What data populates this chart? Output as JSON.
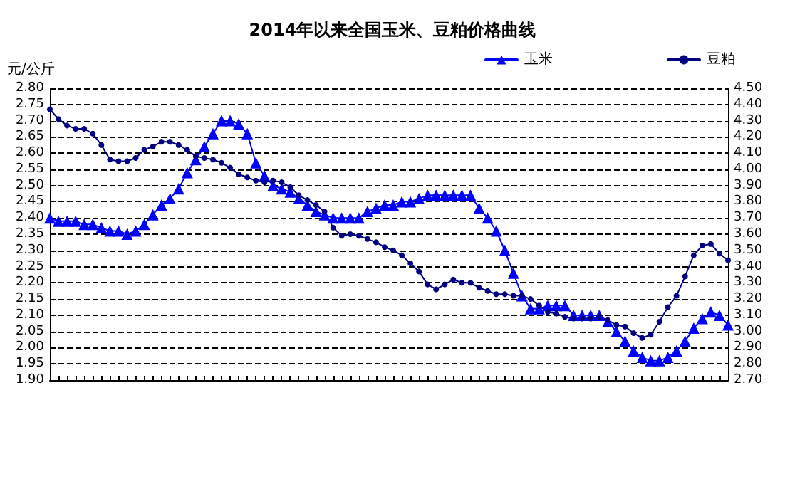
{
  "chart_data": {
    "type": "line",
    "title": "2014年以来全国玉米、豆粕价格曲线",
    "ylabel": "元/公斤",
    "categories": [
      null,
      null,
      null,
      null,
      null,
      null,
      null,
      null,
      null,
      null,
      null,
      null,
      null,
      null,
      null,
      null,
      null,
      null,
      null,
      null,
      null,
      null,
      null,
      null,
      null,
      null,
      null,
      null,
      null,
      null,
      null,
      null,
      null,
      null,
      null,
      null,
      null,
      null,
      null,
      null,
      null,
      null,
      null,
      null,
      null,
      null,
      null,
      null,
      null,
      null,
      null,
      null,
      null,
      null,
      null,
      null,
      null,
      null,
      null,
      null,
      null,
      null,
      null,
      null,
      null,
      null,
      null,
      null,
      null,
      null,
      null,
      null,
      null,
      null,
      null,
      null,
      null,
      null,
      null,
      null
    ],
    "series": [
      {
        "name": "玉米",
        "color": "#0000ff",
        "marker": "triangle",
        "values": [
          2.4,
          2.39,
          2.39,
          2.39,
          2.38,
          2.38,
          2.37,
          2.36,
          2.36,
          2.35,
          2.36,
          2.38,
          2.41,
          2.44,
          2.46,
          2.49,
          2.54,
          2.58,
          2.62,
          2.66,
          2.7,
          2.7,
          2.69,
          2.66,
          2.57,
          2.53,
          2.5,
          2.49,
          2.48,
          2.46,
          2.44,
          2.42,
          2.41,
          2.4,
          2.4,
          2.4,
          2.4,
          2.42,
          2.43,
          2.44,
          2.44,
          2.45,
          2.45,
          2.46,
          2.47,
          2.47,
          2.47,
          2.47,
          2.47,
          2.47,
          2.43,
          2.4,
          2.36,
          2.3,
          2.23,
          2.16,
          2.12,
          2.12,
          2.13,
          2.13,
          2.13,
          2.1,
          2.1,
          2.1,
          2.1,
          2.08,
          2.05,
          2.02,
          1.99,
          1.97,
          1.96,
          1.96,
          1.97,
          1.99,
          2.02,
          2.06,
          2.09,
          2.11,
          2.1,
          2.07
        ]
      },
      {
        "name": "豆粕",
        "color": "#000080",
        "marker": "circle",
        "axis": "y2",
        "values": [
          4.37,
          4.31,
          4.27,
          4.25,
          4.25,
          4.22,
          4.15,
          4.06,
          4.05,
          4.05,
          4.07,
          4.12,
          4.14,
          4.17,
          4.17,
          4.15,
          4.12,
          4.08,
          4.07,
          4.06,
          4.04,
          4.01,
          3.97,
          3.95,
          3.93,
          3.92,
          3.93,
          3.92,
          3.89,
          3.84,
          3.81,
          3.78,
          3.74,
          3.64,
          3.59,
          3.6,
          3.59,
          3.57,
          3.55,
          3.52,
          3.5,
          3.47,
          3.42,
          3.37,
          3.29,
          3.26,
          3.29,
          3.32,
          3.3,
          3.3,
          3.27,
          3.25,
          3.23,
          3.23,
          3.22,
          3.22,
          3.2,
          3.16,
          3.12,
          3.11,
          3.09,
          3.08,
          3.08,
          3.08,
          3.09,
          3.07,
          3.04,
          3.03,
          2.99,
          2.96,
          2.98,
          3.06,
          3.15,
          3.22,
          3.34,
          3.47,
          3.53,
          3.54,
          3.48,
          3.44
        ]
      }
    ],
    "ylim": [
      1.9,
      2.8
    ],
    "yticks": [
      {
        "value": 1.9,
        "label": "1.90"
      },
      {
        "value": 1.95,
        "label": "1.95"
      },
      {
        "value": 2.0,
        "label": "2.00"
      },
      {
        "value": 2.05,
        "label": "2.05"
      },
      {
        "value": 2.1,
        "label": "2.10"
      },
      {
        "value": 2.15,
        "label": "2.15"
      },
      {
        "value": 2.2,
        "label": "2.20"
      },
      {
        "value": 2.25,
        "label": "2.25"
      },
      {
        "value": 2.3,
        "label": "2.30"
      },
      {
        "value": 2.35,
        "label": "2.35"
      },
      {
        "value": 2.4,
        "label": "2.40"
      },
      {
        "value": 2.45,
        "label": "2.45"
      },
      {
        "value": 2.5,
        "label": "2.50"
      },
      {
        "value": 2.55,
        "label": "2.55"
      },
      {
        "value": 2.6,
        "label": "2.60"
      },
      {
        "value": 2.65,
        "label": "2.65"
      },
      {
        "value": 2.7,
        "label": "2.70"
      },
      {
        "value": 2.75,
        "label": "2.75"
      },
      {
        "value": 2.8,
        "label": "2.80"
      }
    ],
    "y2lim": [
      2.7,
      4.5
    ],
    "y2ticks": [
      {
        "value": 2.7,
        "label": "2.70"
      },
      {
        "value": 2.8,
        "label": "2.80"
      },
      {
        "value": 2.9,
        "label": "2.90"
      },
      {
        "value": 3.0,
        "label": "3.00"
      },
      {
        "value": 3.1,
        "label": "3.10"
      },
      {
        "value": 3.2,
        "label": "3.20"
      },
      {
        "value": 3.3,
        "label": "3.30"
      },
      {
        "value": 3.4,
        "label": "3.40"
      },
      {
        "value": 3.5,
        "label": "3.50"
      },
      {
        "value": 3.6,
        "label": "3.60"
      },
      {
        "value": 3.7,
        "label": "3.70"
      },
      {
        "value": 3.8,
        "label": "3.80"
      },
      {
        "value": 3.9,
        "label": "3.90"
      },
      {
        "value": 4.0,
        "label": "4.00"
      },
      {
        "value": 4.1,
        "label": "4.10"
      },
      {
        "value": 4.2,
        "label": "4.20"
      },
      {
        "value": 4.3,
        "label": "4.30"
      },
      {
        "value": 4.4,
        "label": "4.40"
      },
      {
        "value": 4.5,
        "label": "4.50"
      }
    ],
    "grid": "y",
    "legend": "top right",
    "tick_labels": "y",
    "line_style": "solid"
  }
}
